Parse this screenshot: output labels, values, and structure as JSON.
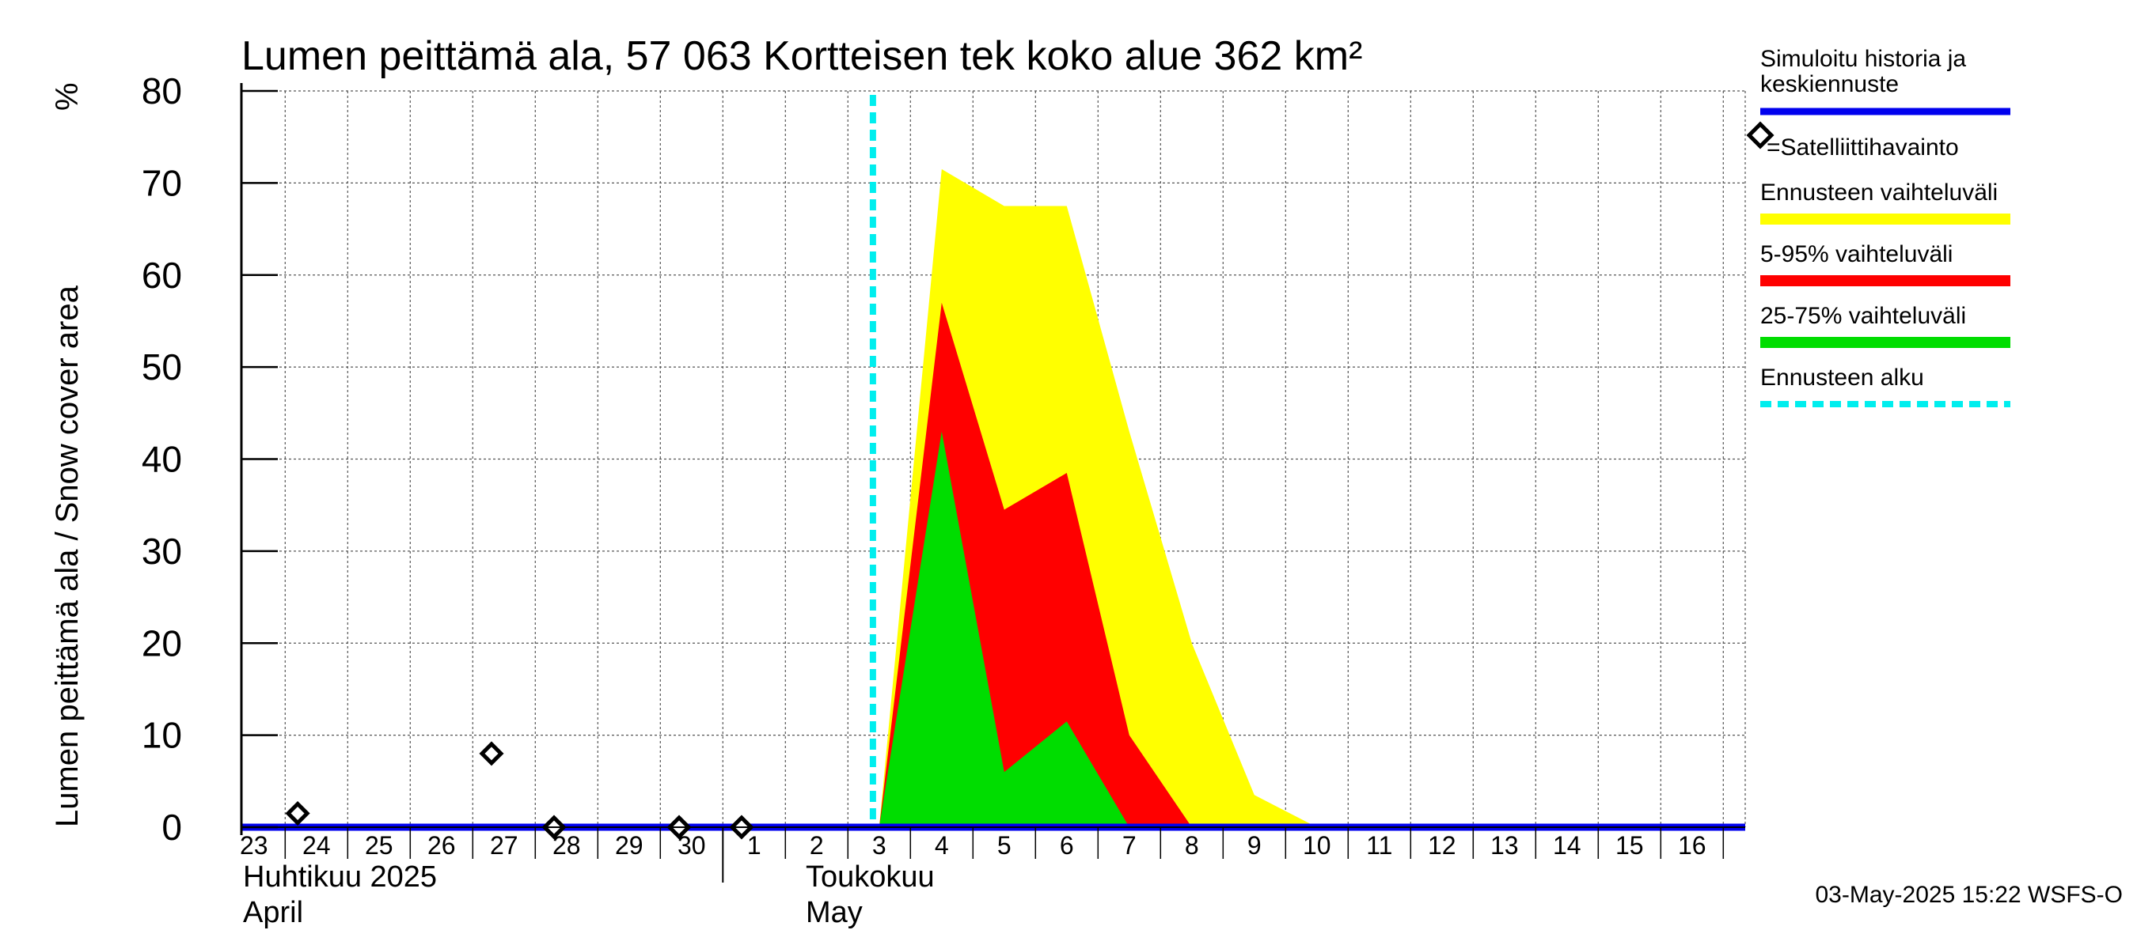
{
  "chart_data": {
    "type": "area",
    "title": "Lumen peittämä ala, 57 063 Kortteisen tek koko alue 362 km²",
    "ylabel": "Lumen peittämä ala / Snow cover area",
    "yunit": "%",
    "ylim": [
      0,
      80
    ],
    "yticks": [
      0,
      10,
      20,
      30,
      40,
      50,
      60,
      70,
      80
    ],
    "x_range": [
      22.8,
      16.95
    ],
    "day_labels": [
      {
        "label": "23",
        "month": 4,
        "day": 23
      },
      {
        "label": "24",
        "month": 4,
        "day": 24
      },
      {
        "label": "25",
        "month": 4,
        "day": 25
      },
      {
        "label": "26",
        "month": 4,
        "day": 26
      },
      {
        "label": "27",
        "month": 4,
        "day": 27
      },
      {
        "label": "28",
        "month": 4,
        "day": 28
      },
      {
        "label": "29",
        "month": 4,
        "day": 29
      },
      {
        "label": "30",
        "month": 4,
        "day": 30
      },
      {
        "label": "1",
        "month": 5,
        "day": 1
      },
      {
        "label": "2",
        "month": 5,
        "day": 2
      },
      {
        "label": "3",
        "month": 5,
        "day": 3
      },
      {
        "label": "4",
        "month": 5,
        "day": 4
      },
      {
        "label": "5",
        "month": 5,
        "day": 5
      },
      {
        "label": "6",
        "month": 5,
        "day": 6
      },
      {
        "label": "7",
        "month": 5,
        "day": 7
      },
      {
        "label": "8",
        "month": 5,
        "day": 8
      },
      {
        "label": "9",
        "month": 5,
        "day": 9
      },
      {
        "label": "10",
        "month": 5,
        "day": 10
      },
      {
        "label": "11",
        "month": 5,
        "day": 11
      },
      {
        "label": "12",
        "month": 5,
        "day": 12
      },
      {
        "label": "13",
        "month": 5,
        "day": 13
      },
      {
        "label": "14",
        "month": 5,
        "day": 14
      },
      {
        "label": "15",
        "month": 5,
        "day": 15
      },
      {
        "label": "16",
        "month": 5,
        "day": 16
      }
    ],
    "month_labels": [
      {
        "fi": "Huhtikuu  2025",
        "en": "April"
      },
      {
        "fi": "Toukokuu",
        "en": "May"
      }
    ],
    "forecast_start": {
      "month": 5,
      "day": 3
    },
    "bands": [
      {
        "name": "Ennusteen vaihteluväli",
        "color": "#ffff00",
        "points": [
          [
            3.0,
            0
          ],
          [
            4.0,
            71.5
          ],
          [
            5.0,
            67.5
          ],
          [
            6.0,
            67.5
          ],
          [
            7.0,
            43
          ],
          [
            8.0,
            20
          ],
          [
            9.0,
            3.5
          ],
          [
            10.0,
            0
          ]
        ]
      },
      {
        "name": "5-95% vaihteluväli",
        "color": "#ff0000",
        "points": [
          [
            3.0,
            0
          ],
          [
            4.0,
            57
          ],
          [
            5.0,
            34.5
          ],
          [
            6.0,
            38.5
          ],
          [
            7.0,
            10
          ],
          [
            8.0,
            0
          ]
        ]
      },
      {
        "name": "25-75% vaihteluväli",
        "color": "#00dd00",
        "points": [
          [
            3.0,
            0
          ],
          [
            4.0,
            43
          ],
          [
            5.0,
            6
          ],
          [
            6.0,
            11.5
          ],
          [
            7.0,
            0
          ]
        ]
      }
    ],
    "series": [
      {
        "name": "Simuloitu historia ja keskiennuste",
        "color": "#0000ee",
        "points": [
          [
            22.8,
            0
          ],
          [
            16.95,
            0
          ]
        ]
      }
    ],
    "observations": [
      {
        "month": 4,
        "day": 23.7,
        "value": 1.5
      },
      {
        "month": 4,
        "day": 26.8,
        "value": 8
      },
      {
        "month": 4,
        "day": 27.8,
        "value": 0
      },
      {
        "month": 4,
        "day": 29.8,
        "value": 0
      },
      {
        "month": 4,
        "day": 30.8,
        "value": 0
      }
    ],
    "legend": [
      {
        "label": "Simuloitu historia ja keskiennuste",
        "color": "#0000ee",
        "style": "line"
      },
      {
        "label": "=Satelliittihavainto",
        "color": "#000000",
        "style": "marker"
      },
      {
        "label": "Ennusteen vaihteluväli",
        "color": "#ffff00",
        "style": "band"
      },
      {
        "label": "5-95% vaihteluväli",
        "color": "#ff0000",
        "style": "band"
      },
      {
        "label": "25-75% vaihteluväli",
        "color": "#00dd00",
        "style": "band"
      },
      {
        "label": "Ennusteen alku",
        "color": "#00eeee",
        "style": "dashed"
      }
    ],
    "footer": "03-May-2025 15:22 WSFS-O"
  }
}
